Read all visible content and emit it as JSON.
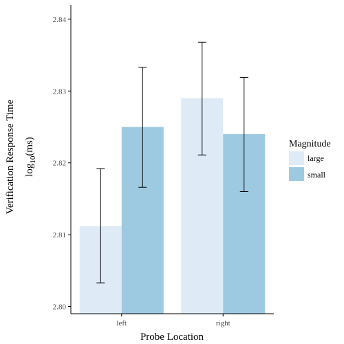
{
  "chart_data": {
    "type": "bar",
    "categories": [
      "left",
      "right"
    ],
    "series": [
      {
        "name": "large",
        "values": [
          2.8112,
          2.829
        ],
        "error_low": [
          2.8033,
          2.8211
        ],
        "error_high": [
          2.8192,
          2.8368
        ],
        "color": "#deebf7"
      },
      {
        "name": "small",
        "values": [
          2.825,
          2.824
        ],
        "error_low": [
          2.8166,
          2.816
        ],
        "error_high": [
          2.8333,
          2.8319
        ],
        "color": "#9ecae1"
      }
    ],
    "xlabel": "Probe Location",
    "ylabel_line1": "Verification Response Time",
    "ylabel_line2_base": "log",
    "ylabel_line2_sub": "10",
    "ylabel_line2_rest": "(ms)",
    "ylim": [
      2.799,
      2.842
    ],
    "yticks": [
      "2.80",
      "2.81",
      "2.82",
      "2.83",
      "2.84"
    ],
    "legend": {
      "title": "Magnitude",
      "position": "right"
    },
    "grid": false
  }
}
